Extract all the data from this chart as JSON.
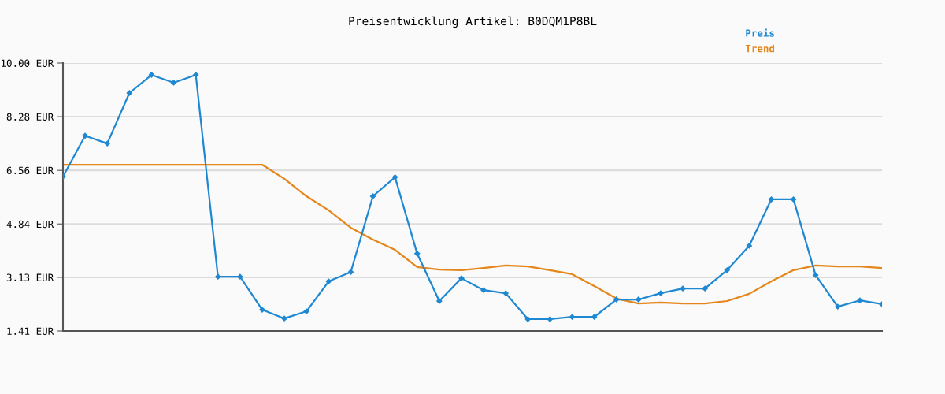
{
  "chart_data": {
    "type": "line",
    "title": "Preisentwicklung Artikel: B0DQM1P8BL",
    "categories": [
      null,
      null,
      null,
      null,
      null,
      null,
      null,
      null,
      null,
      null,
      null,
      null,
      null,
      null,
      null,
      null,
      null,
      null,
      null,
      null,
      null,
      null,
      null,
      null,
      null,
      null,
      null,
      null,
      null,
      null,
      null,
      null,
      null,
      null,
      null,
      null,
      null,
      null
    ],
    "series": [
      {
        "name": "Preis",
        "color": "#1f88d2",
        "marker": "diamond",
        "values": [
          6.36,
          7.67,
          7.42,
          9.04,
          9.62,
          9.37,
          9.62,
          3.15,
          3.15,
          2.09,
          1.81,
          2.04,
          3.0,
          3.3,
          5.73,
          6.34,
          3.89,
          2.37,
          3.1,
          2.72,
          2.62,
          1.79,
          1.79,
          1.86,
          1.86,
          2.42,
          2.42,
          2.62,
          2.77,
          2.77,
          3.36,
          4.14,
          5.63,
          5.63,
          3.2,
          2.19,
          2.39,
          2.27
        ]
      },
      {
        "name": "Trend",
        "color": "#e5861a",
        "marker": "none",
        "values": [
          6.74,
          6.74,
          6.74,
          6.74,
          6.74,
          6.74,
          6.74,
          6.74,
          6.74,
          6.74,
          6.29,
          5.73,
          5.28,
          4.72,
          4.34,
          4.01,
          3.46,
          3.38,
          3.36,
          3.43,
          3.51,
          3.48,
          3.36,
          3.23,
          2.85,
          2.45,
          2.29,
          2.32,
          2.29,
          2.29,
          2.37,
          2.6,
          3.0,
          3.36,
          3.51,
          3.48,
          3.48,
          3.43
        ]
      }
    ],
    "ylim": [
      1.41,
      10.0
    ],
    "yticks": [
      {
        "value": 1.41,
        "label": "1.41 EUR"
      },
      {
        "value": 3.13,
        "label": "3.13 EUR"
      },
      {
        "value": 4.84,
        "label": "4.84 EUR"
      },
      {
        "value": 6.56,
        "label": "6.56 EUR"
      },
      {
        "value": 8.28,
        "label": "8.28 EUR"
      },
      {
        "value": 10.0,
        "label": "10.00 EUR"
      }
    ],
    "grid": "y",
    "legend": "top right",
    "tick_labels": "y",
    "line_style": "solid"
  }
}
